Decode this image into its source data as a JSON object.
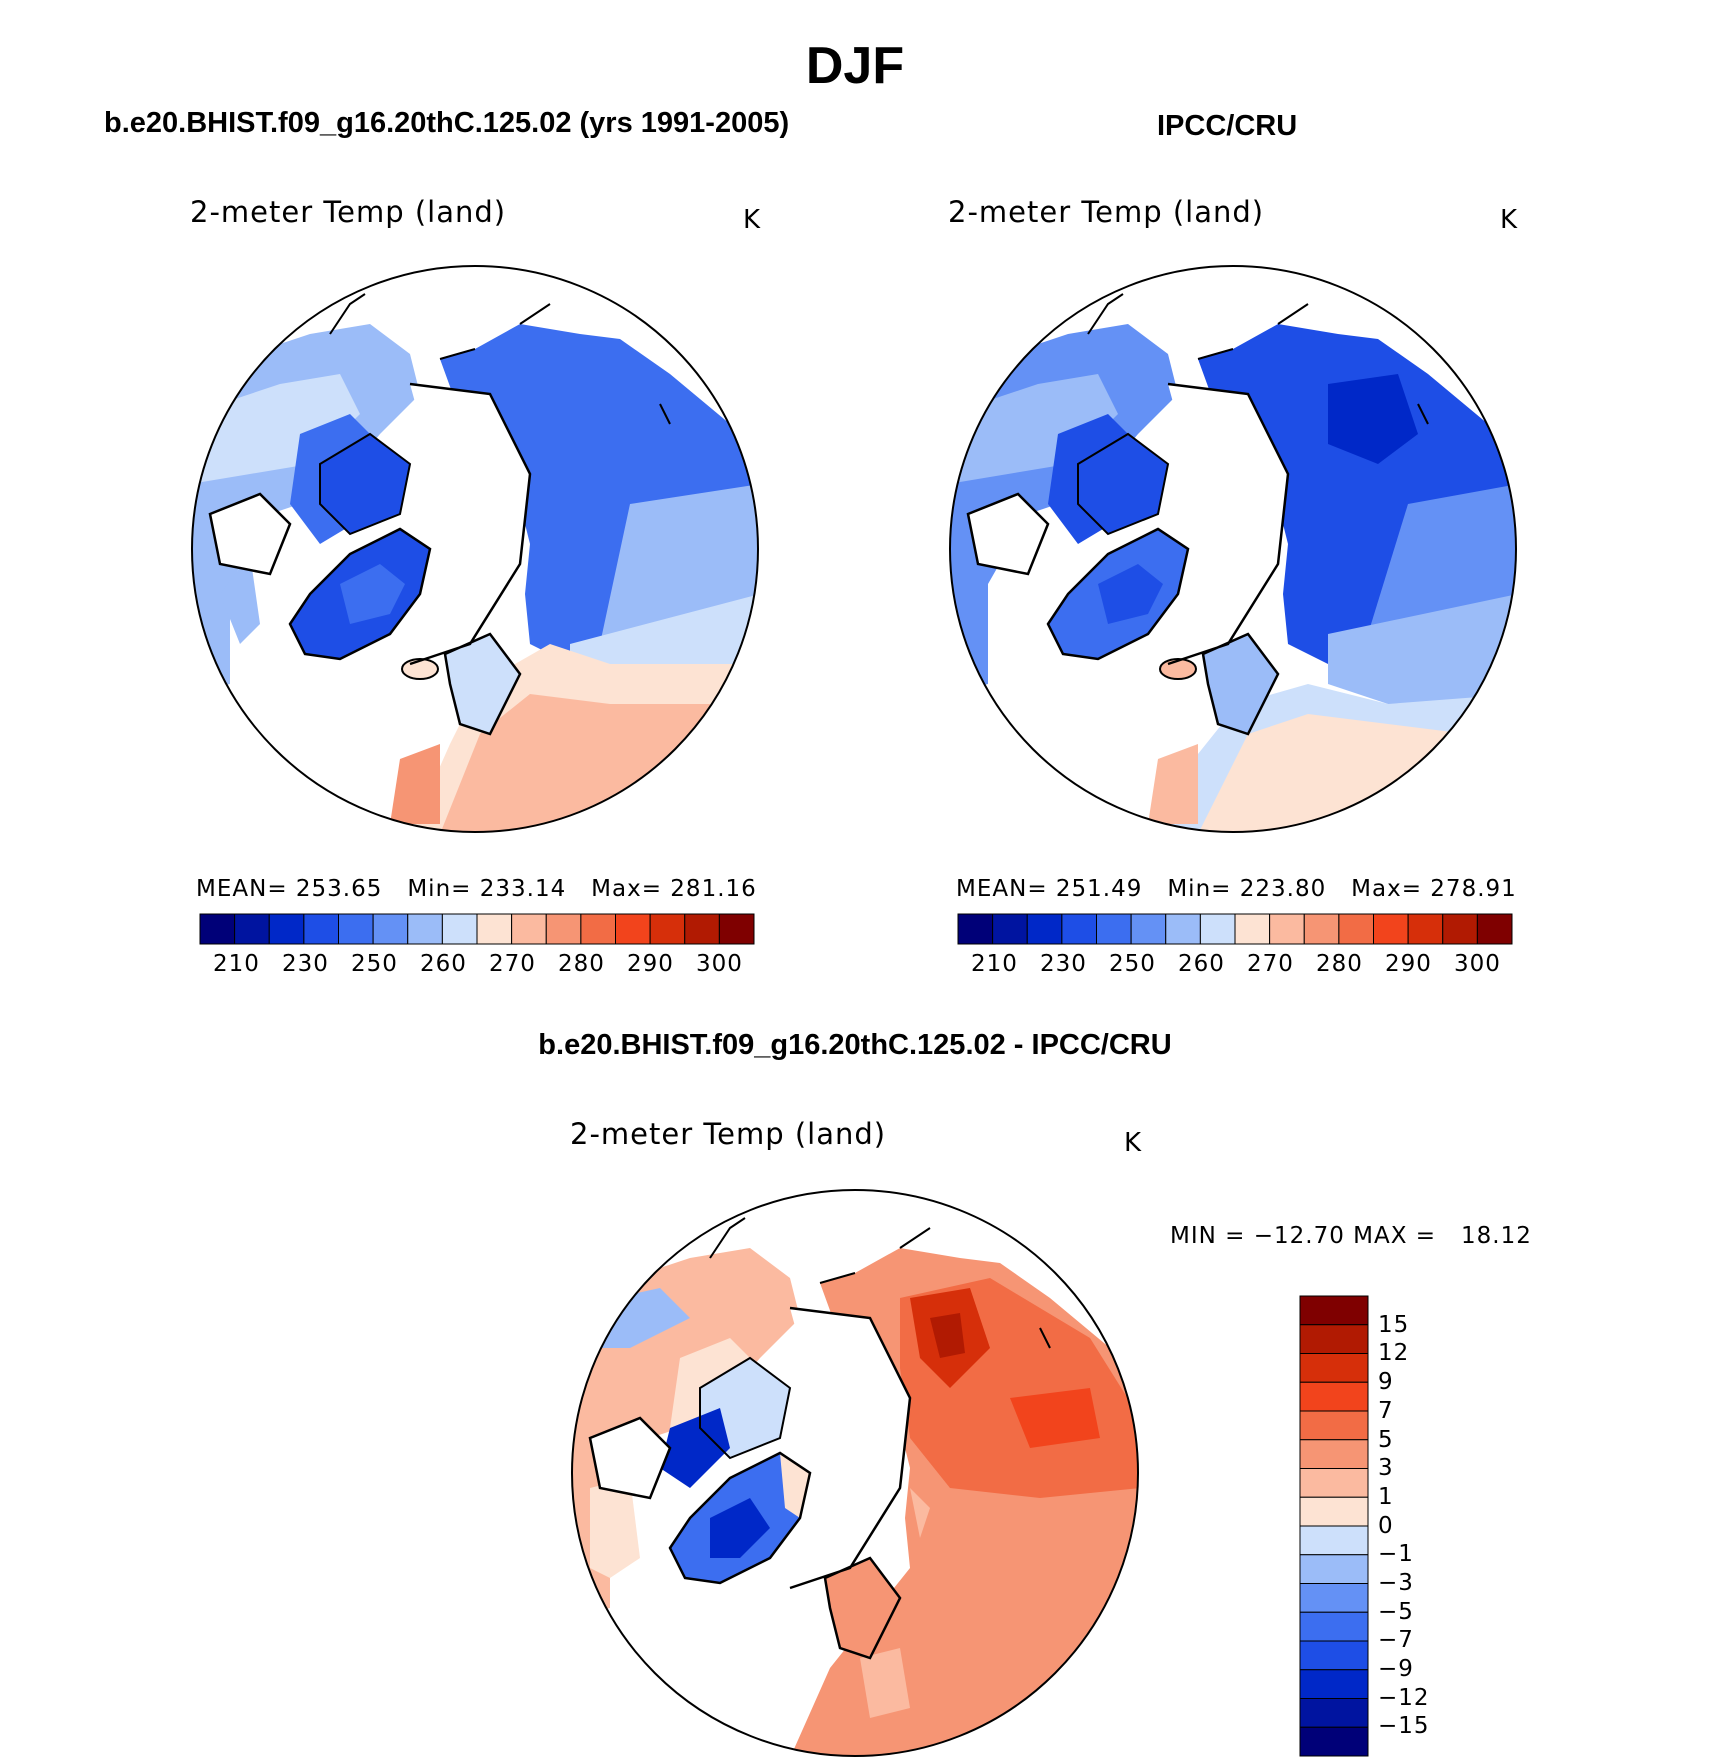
{
  "title": "DJF",
  "colors": {
    "warm_palette": [
      "#fde3d3",
      "#fbbaa0",
      "#f69574",
      "#f26c45",
      "#f2441c",
      "#d62f0a",
      "#b11a02",
      "#7f0000"
    ],
    "cool_palette": [
      "#000078",
      "#0014a0",
      "#0028c8",
      "#1e4ee6",
      "#3c6ef0",
      "#6491f5",
      "#9bbcf8",
      "#cde0fb"
    ],
    "diff_palette": [
      "#000078",
      "#0014a0",
      "#0028c8",
      "#1e4ee6",
      "#3c6ef0",
      "#6491f5",
      "#9bbcf8",
      "#cde0fb",
      "#fde3d3",
      "#fbbaa0",
      "#f69574",
      "#f26c45",
      "#f2441c",
      "#d62f0a",
      "#b11a02",
      "#7f0000"
    ]
  },
  "chart_data": [
    {
      "type": "heatmap",
      "panel_title": "b.e20.BHIST.f09_g16.20thC.125.02 (yrs 1991-2005)",
      "variable": "2-meter Temp (land)",
      "units": "K",
      "projection": "north polar stereographic",
      "stats": {
        "mean_label": "MEAN=",
        "mean": "253.65",
        "min_label": "Min=",
        "min": "233.14",
        "max_label": "Max=",
        "max": "281.16"
      },
      "colorbar": {
        "orientation": "horizontal",
        "tick_labels": [
          "210",
          "230",
          "250",
          "260",
          "270",
          "280",
          "290",
          "300"
        ],
        "levels": [
          200,
          210,
          220,
          230,
          240,
          250,
          255,
          260,
          265,
          270,
          275,
          280,
          285,
          290,
          295,
          300,
          305
        ]
      }
    },
    {
      "type": "heatmap",
      "panel_title": "IPCC/CRU",
      "variable": "2-meter Temp (land)",
      "units": "K",
      "projection": "north polar stereographic",
      "stats": {
        "mean_label": "MEAN=",
        "mean": "251.49",
        "min_label": "Min=",
        "min": "223.80",
        "max_label": "Max=",
        "max": "278.91"
      },
      "colorbar": {
        "orientation": "horizontal",
        "tick_labels": [
          "210",
          "230",
          "250",
          "260",
          "270",
          "280",
          "290",
          "300"
        ],
        "levels": [
          200,
          210,
          220,
          230,
          240,
          250,
          255,
          260,
          265,
          270,
          275,
          280,
          285,
          290,
          295,
          300,
          305
        ]
      }
    },
    {
      "type": "heatmap",
      "panel_title": "b.e20.BHIST.f09_g16.20thC.125.02 - IPCC/CRU",
      "variable": "2-meter Temp (land)",
      "units": "K",
      "projection": "north polar stereographic",
      "stats_text": "MIN = −12.70 MAX =   18.12",
      "stats": {
        "min": -12.7,
        "max": 18.12
      },
      "colorbar": {
        "orientation": "vertical",
        "tick_labels": [
          "15",
          "12",
          "9",
          "7",
          "5",
          "3",
          "1",
          "0",
          "−1",
          "−3",
          "−5",
          "−7",
          "−9",
          "−12",
          "−15"
        ],
        "levels": [
          15,
          12,
          9,
          7,
          5,
          3,
          1,
          0,
          -1,
          -3,
          -5,
          -7,
          -9,
          -12,
          -15
        ]
      }
    }
  ]
}
